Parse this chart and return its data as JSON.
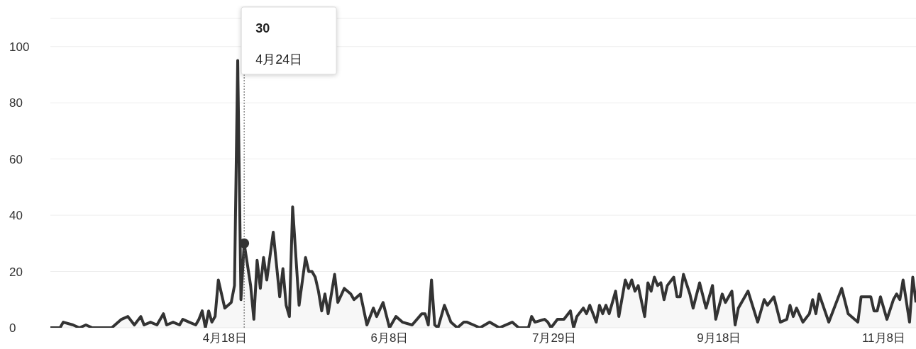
{
  "chart_data": {
    "type": "area",
    "x": [
      "--02-24",
      "--02-27",
      "--02-28",
      "--03-02",
      "--03-04",
      "--03-06",
      "--03-08",
      "--03-14",
      "--03-17",
      "--03-19",
      "--03-21",
      "--03-23",
      "--03-24",
      "--03-26",
      "--03-28",
      "--03-30",
      "--03-31",
      "--04-02",
      "--04-04",
      "--04-05",
      "--04-07",
      "--04-09",
      "--04-10",
      "--04-11",
      "--04-12",
      "--04-13",
      "--04-14",
      "--04-15",
      "--04-16",
      "--04-18",
      "--04-20",
      "--04-21",
      "--04-22",
      "--04-23",
      "--04-24",
      "--04-26",
      "--04-27",
      "--04-28",
      "--04-29",
      "--04-30",
      "--05-01",
      "--05-03",
      "--05-05",
      "--05-06",
      "--05-07",
      "--05-08",
      "--05-09",
      "--05-11",
      "--05-13",
      "--05-14",
      "--05-15",
      "--05-16",
      "--05-17",
      "--05-18",
      "--05-19",
      "--05-20",
      "--05-22",
      "--05-23",
      "--05-25",
      "--05-27",
      "--05-28",
      "--05-30",
      "--06-01",
      "--06-03",
      "--06-04",
      "--06-06",
      "--06-08",
      "--06-10",
      "--06-12",
      "--06-15",
      "--06-18",
      "--06-19",
      "--06-20",
      "--06-21",
      "--06-22",
      "--06-23",
      "--06-25",
      "--06-27",
      "--06-29",
      "--07-01",
      "--07-02",
      "--07-04",
      "--07-06",
      "--07-09",
      "--07-12",
      "--07-16",
      "--07-18",
      "--07-21",
      "--07-22",
      "--07-23",
      "--07-26",
      "--07-27",
      "--07-28",
      "--07-30",
      "--08-01",
      "--08-03",
      "--08-04",
      "--08-05",
      "--08-07",
      "--08-08",
      "--08-09",
      "--08-11",
      "--08-12",
      "--08-13",
      "--08-14",
      "--08-15",
      "--08-17",
      "--08-18",
      "--08-20",
      "--08-21",
      "--08-22",
      "--08-23",
      "--08-24",
      "--08-26",
      "--08-27",
      "--08-28",
      "--08-29",
      "--08-30",
      "--08-31",
      "--09-01",
      "--09-02",
      "--09-04",
      "--09-05",
      "--09-06",
      "--09-07",
      "--09-09",
      "--09-10",
      "--09-12",
      "--09-14",
      "--09-16",
      "--09-17",
      "--09-19",
      "--09-20",
      "--09-22",
      "--09-23",
      "--09-24",
      "--09-27",
      "--09-30",
      "--10-02",
      "--10-03",
      "--10-05",
      "--10-07",
      "--10-09",
      "--10-10",
      "--10-11",
      "--10-12",
      "--10-14",
      "--10-16",
      "--10-17",
      "--10-18",
      "--10-19",
      "--10-22",
      "--10-26",
      "--10-28",
      "--10-31",
      "--11-01",
      "--11-04",
      "--11-05",
      "--11-06",
      "--11-07",
      "--11-09",
      "--11-11",
      "--11-12",
      "--11-13",
      "--11-14",
      "--11-16",
      "--11-17",
      "--11-18"
    ],
    "series": [
      {
        "color": "#333333",
        "values": [
          0,
          0,
          2,
          1,
          0,
          1,
          0,
          0,
          3,
          4,
          1,
          4,
          1,
          2,
          1,
          5,
          1,
          2,
          1,
          3,
          2,
          1,
          3,
          6,
          0,
          6,
          2,
          4,
          17,
          7,
          9,
          15,
          95,
          10,
          30,
          15,
          3,
          24,
          14,
          25,
          17,
          34,
          11,
          21,
          8,
          4,
          43,
          8,
          25,
          20,
          20,
          18,
          13,
          6,
          12,
          5,
          19,
          9,
          14,
          12,
          10,
          12,
          1,
          7,
          4,
          9,
          0,
          4,
          2,
          1,
          5,
          5,
          1,
          17,
          1,
          0,
          8,
          2,
          0,
          2,
          2,
          1,
          0,
          2,
          0,
          2,
          0,
          0,
          4,
          2,
          3,
          2,
          0,
          3,
          3,
          6,
          0,
          4,
          7,
          5,
          8,
          2,
          8,
          5,
          8,
          5,
          13,
          4,
          17,
          14,
          17,
          13,
          15,
          4,
          16,
          13,
          18,
          15,
          16,
          10,
          15,
          18,
          11,
          11,
          19,
          12,
          7,
          16,
          7,
          15,
          3,
          12,
          9,
          13,
          1,
          7,
          13,
          2,
          10,
          8,
          11,
          2,
          3,
          8,
          4,
          7,
          2,
          5,
          10,
          5,
          12,
          2,
          14,
          5,
          2,
          11,
          11,
          6,
          6,
          11,
          3,
          10,
          12,
          10,
          17,
          2,
          18,
          9
        ]
      }
    ],
    "xlim": [
      "--02-24",
      "--11-18"
    ],
    "xticks": [
      {
        "value": "--04-18",
        "label": "4月18日"
      },
      {
        "value": "--06-08",
        "label": "6月8日"
      },
      {
        "value": "--07-29",
        "label": "7月29日"
      },
      {
        "value": "--09-18",
        "label": "9月18日"
      },
      {
        "value": "--11-08",
        "label": "11月8日"
      }
    ],
    "ylim": [
      0,
      110
    ],
    "yticks": [
      0,
      20,
      40,
      60,
      80,
      100
    ],
    "grid": "y",
    "marker": "none",
    "line_style": "solid",
    "ref_lines": [
      {
        "axis": "x",
        "value": "--04-24",
        "line_style": "dotted",
        "color": "#555555"
      }
    ],
    "annotations": [
      "30",
      "4月24日"
    ]
  }
}
